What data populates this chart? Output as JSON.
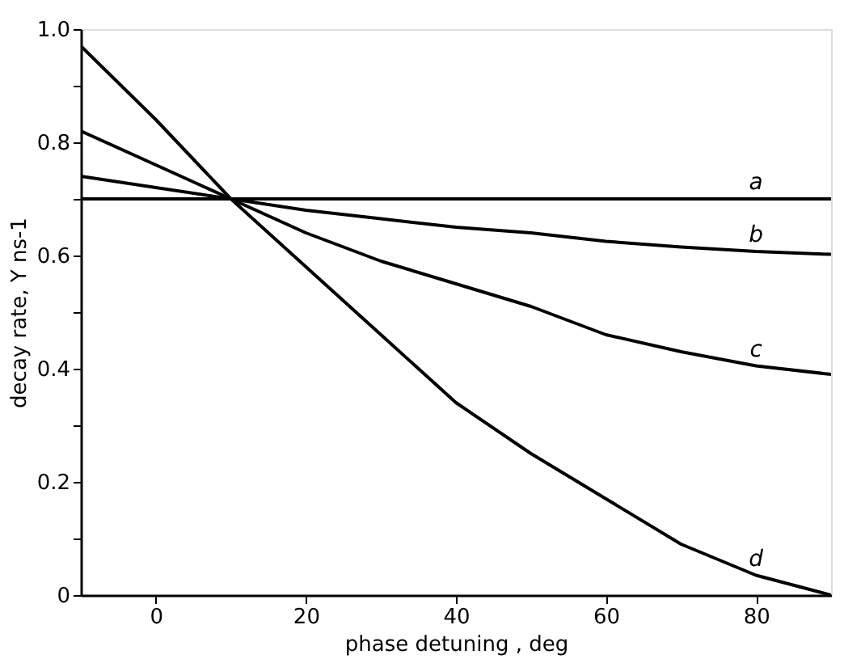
{
  "chart_data": {
    "type": "line",
    "xlabel": "phase detuning , deg",
    "ylabel": "decay rate, Y ns-1",
    "x": [
      -10,
      0,
      10,
      20,
      30,
      40,
      50,
      60,
      70,
      80,
      90
    ],
    "series": [
      {
        "name": "a",
        "color": "#000000",
        "values": [
          0.7,
          0.7,
          0.7,
          0.7,
          0.7,
          0.7,
          0.7,
          0.7,
          0.7,
          0.7,
          0.7
        ]
      },
      {
        "name": "b",
        "color": "#000000",
        "values": [
          0.74,
          0.72,
          0.7,
          0.68,
          0.665,
          0.65,
          0.64,
          0.625,
          0.615,
          0.607,
          0.602
        ]
      },
      {
        "name": "c",
        "color": "#000000",
        "values": [
          0.82,
          0.76,
          0.7,
          0.64,
          0.59,
          0.55,
          0.51,
          0.46,
          0.43,
          0.405,
          0.39
        ]
      },
      {
        "name": "d",
        "color": "#000000",
        "values": [
          0.97,
          0.84,
          0.7,
          0.58,
          0.46,
          0.34,
          0.25,
          0.17,
          0.09,
          0.035,
          0.0
        ]
      }
    ],
    "xlim": [
      -10,
      90
    ],
    "xticks": [
      0,
      20,
      40,
      60,
      80
    ],
    "ylim": [
      0,
      1.0
    ],
    "yticks": [
      0,
      {
        "value": 0.1,
        "label": null
      },
      0.2,
      {
        "value": 0.3,
        "label": null
      },
      0.4,
      {
        "value": 0.5,
        "label": null
      },
      0.6,
      {
        "value": 0.7,
        "label": null
      },
      0.8,
      {
        "value": 0.9,
        "label": null
      },
      {
        "value": 1.0,
        "label": "1.0"
      }
    ],
    "grid": false,
    "legend": false,
    "marker": "none",
    "line_style": "solid"
  }
}
